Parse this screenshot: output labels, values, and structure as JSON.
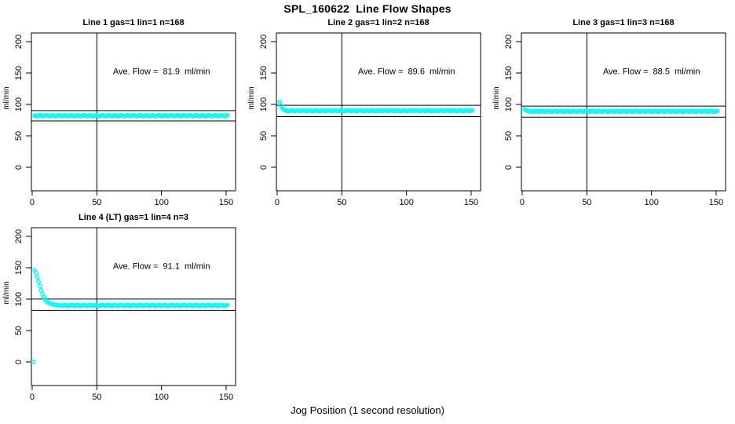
{
  "figure": {
    "title": "SPL_160622  Line Flow Shapes",
    "xlabel": "Jog Position (1 second resolution)",
    "background_color": "#ffffff",
    "axis_color": "#000000",
    "point_color": "#00ffff"
  },
  "chart_data": {
    "type": "scatter",
    "title": "SPL_160622  Line Flow Shapes",
    "xlabel": "Jog Position (1 second resolution)",
    "ylabel": "ml/min",
    "layout": "2 rows x 3 cols, panels 5-6 empty",
    "grid": "off",
    "point_style": "open-circle",
    "point_color": "#00ffff",
    "x_ticks": [
      0,
      50,
      100,
      150
    ],
    "y_ticks": [
      0,
      50,
      100,
      150,
      200
    ],
    "xlim": [
      -0.6,
      157.3
    ],
    "ylim": [
      -37.5,
      213.75
    ],
    "vline_x": 50,
    "annotation_anchor": {
      "x": 100,
      "y": 148
    },
    "panels": [
      {
        "title": "Line 1 gas=1 lin=1 n=168",
        "ave_flow_ml_min": 81.9,
        "annotation": "Ave. Flow =  81.9  ml/min",
        "ref_lines": [
          90.1,
          73.7
        ],
        "steady_value": 82,
        "x_start": 2,
        "x_end": 151,
        "transient_points": [],
        "outlier_points": [],
        "row": 0,
        "col": 0
      },
      {
        "title": "Line 2 gas=1 lin=2 n=168",
        "ave_flow_ml_min": 89.6,
        "annotation": "Ave. Flow =  89.6  ml/min",
        "ref_lines": [
          98.6,
          80.6
        ],
        "steady_value": 90,
        "x_start": 2,
        "x_end": 151,
        "transient_points": [
          [
            2,
            104
          ],
          [
            3,
            98
          ],
          [
            4,
            94
          ],
          [
            5,
            92
          ],
          [
            6,
            91
          ]
        ],
        "outlier_points": [],
        "row": 0,
        "col": 1
      },
      {
        "title": "Line 3 gas=1 lin=3 n=168",
        "ave_flow_ml_min": 88.5,
        "annotation": "Ave. Flow =  88.5  ml/min",
        "ref_lines": [
          97.4,
          79.7
        ],
        "steady_value": 89,
        "x_start": 2,
        "x_end": 151,
        "transient_points": [
          [
            2,
            92
          ],
          [
            3,
            91
          ],
          [
            4,
            90
          ]
        ],
        "outlier_points": [],
        "row": 0,
        "col": 2
      },
      {
        "title": "Line 4 (LT) gas=1 lin=4 n=3",
        "ave_flow_ml_min": 91.1,
        "annotation": "Ave. Flow =  91.1  ml/min",
        "ref_lines": [
          100.2,
          82.0
        ],
        "steady_value": 90,
        "x_start": 2,
        "x_end": 151,
        "transient_points": [
          [
            2,
            146
          ],
          [
            3,
            141
          ],
          [
            4,
            135
          ],
          [
            5,
            128
          ],
          [
            6,
            121
          ],
          [
            7,
            114
          ],
          [
            8,
            108
          ],
          [
            9,
            103
          ],
          [
            10,
            100
          ],
          [
            11,
            97
          ],
          [
            12,
            95
          ],
          [
            13,
            94
          ],
          [
            14,
            93
          ],
          [
            15,
            92.5
          ],
          [
            16,
            92
          ],
          [
            17,
            91.5
          ],
          [
            18,
            91
          ],
          [
            19,
            90.5
          ],
          [
            20,
            90.3
          ]
        ],
        "outlier_points": [
          [
            1,
            0
          ]
        ],
        "row": 1,
        "col": 0
      }
    ]
  }
}
